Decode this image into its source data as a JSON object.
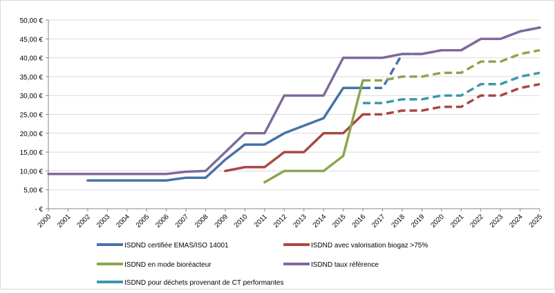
{
  "chart_data": {
    "type": "line",
    "categories": [
      "2000",
      "2001",
      "2002",
      "2003",
      "2004",
      "2005",
      "2006",
      "2007",
      "2008",
      "2009",
      "2010",
      "2011",
      "2012",
      "2013",
      "2014",
      "2015",
      "2016",
      "2017",
      "2018",
      "2019",
      "2020",
      "2021",
      "2022",
      "2023",
      "2024",
      "2025"
    ],
    "y_ticks": [
      "50,00 €",
      "45,00 €",
      "40,00 €",
      "35,00 €",
      "30,00 €",
      "25,00 €",
      "20,00 €",
      "15,00 €",
      "10,00 €",
      "5,00 €",
      "- €"
    ],
    "ylim": [
      0,
      50
    ],
    "grid": true,
    "legend_position": "bottom",
    "series": [
      {
        "name": "ISDND certifiée EMAS/ISO 14001",
        "color": "#4572a7",
        "points": [
          [
            2,
            7.5
          ],
          [
            6,
            7.5
          ],
          [
            7,
            8.2
          ],
          [
            8,
            8.2
          ],
          [
            9,
            13
          ],
          [
            10,
            17
          ],
          [
            11,
            17
          ],
          [
            12,
            20
          ],
          [
            13,
            22
          ],
          [
            14,
            24
          ],
          [
            15,
            32
          ],
          [
            16,
            32
          ]
        ],
        "dashed_points": [
          [
            16,
            32
          ],
          [
            17,
            32
          ],
          [
            18,
            41
          ],
          [
            19,
            41
          ],
          [
            20,
            42
          ],
          [
            21,
            42
          ],
          [
            22,
            45
          ],
          [
            23,
            45
          ],
          [
            24,
            47
          ],
          [
            25,
            48
          ]
        ]
      },
      {
        "name": "ISDND avec valorisation biogaz >75%",
        "color": "#aa4643",
        "points": [
          [
            9,
            10
          ],
          [
            10,
            11
          ],
          [
            11,
            11
          ],
          [
            12,
            15
          ],
          [
            13,
            15
          ],
          [
            14,
            20
          ],
          [
            15,
            20
          ],
          [
            16,
            25
          ]
        ],
        "dashed_points": [
          [
            16,
            25
          ],
          [
            17,
            25
          ],
          [
            18,
            26
          ],
          [
            19,
            26
          ],
          [
            20,
            27
          ],
          [
            21,
            27
          ],
          [
            22,
            30
          ],
          [
            23,
            30
          ],
          [
            24,
            32
          ],
          [
            25,
            33
          ]
        ]
      },
      {
        "name": "ISDND en mode bioréacteur",
        "color": "#89a54e",
        "points": [
          [
            11,
            7
          ],
          [
            12,
            10
          ],
          [
            13,
            10
          ],
          [
            14,
            10
          ],
          [
            15,
            14
          ],
          [
            16,
            34
          ]
        ],
        "dashed_points": [
          [
            16,
            34
          ],
          [
            17,
            34
          ],
          [
            18,
            35
          ],
          [
            19,
            35
          ],
          [
            20,
            36
          ],
          [
            21,
            36
          ],
          [
            22,
            39
          ],
          [
            23,
            39
          ],
          [
            24,
            41
          ],
          [
            25,
            42
          ]
        ]
      },
      {
        "name": "ISDND taux référence",
        "color": "#80699b",
        "points": [
          [
            0,
            9.2
          ],
          [
            6,
            9.2
          ],
          [
            7,
            9.8
          ],
          [
            8,
            10
          ],
          [
            9,
            15
          ],
          [
            10,
            20
          ],
          [
            11,
            20
          ],
          [
            12,
            30
          ],
          [
            13,
            30
          ],
          [
            14,
            30
          ],
          [
            15,
            40
          ],
          [
            16,
            40
          ],
          [
            17,
            40
          ],
          [
            18,
            41
          ],
          [
            19,
            41
          ],
          [
            20,
            42
          ],
          [
            21,
            42
          ],
          [
            22,
            45
          ],
          [
            23,
            45
          ],
          [
            24,
            47
          ],
          [
            25,
            48
          ]
        ],
        "dashed_points": []
      },
      {
        "name": "ISDND pour déchets provenant de CT performantes",
        "color": "#3d96ae",
        "points": [],
        "dashed_points": [
          [
            16,
            28
          ],
          [
            17,
            28
          ],
          [
            18,
            29
          ],
          [
            19,
            29
          ],
          [
            20,
            30
          ],
          [
            21,
            30
          ],
          [
            22,
            33
          ],
          [
            23,
            33
          ],
          [
            24,
            35
          ],
          [
            25,
            36
          ]
        ]
      }
    ]
  }
}
